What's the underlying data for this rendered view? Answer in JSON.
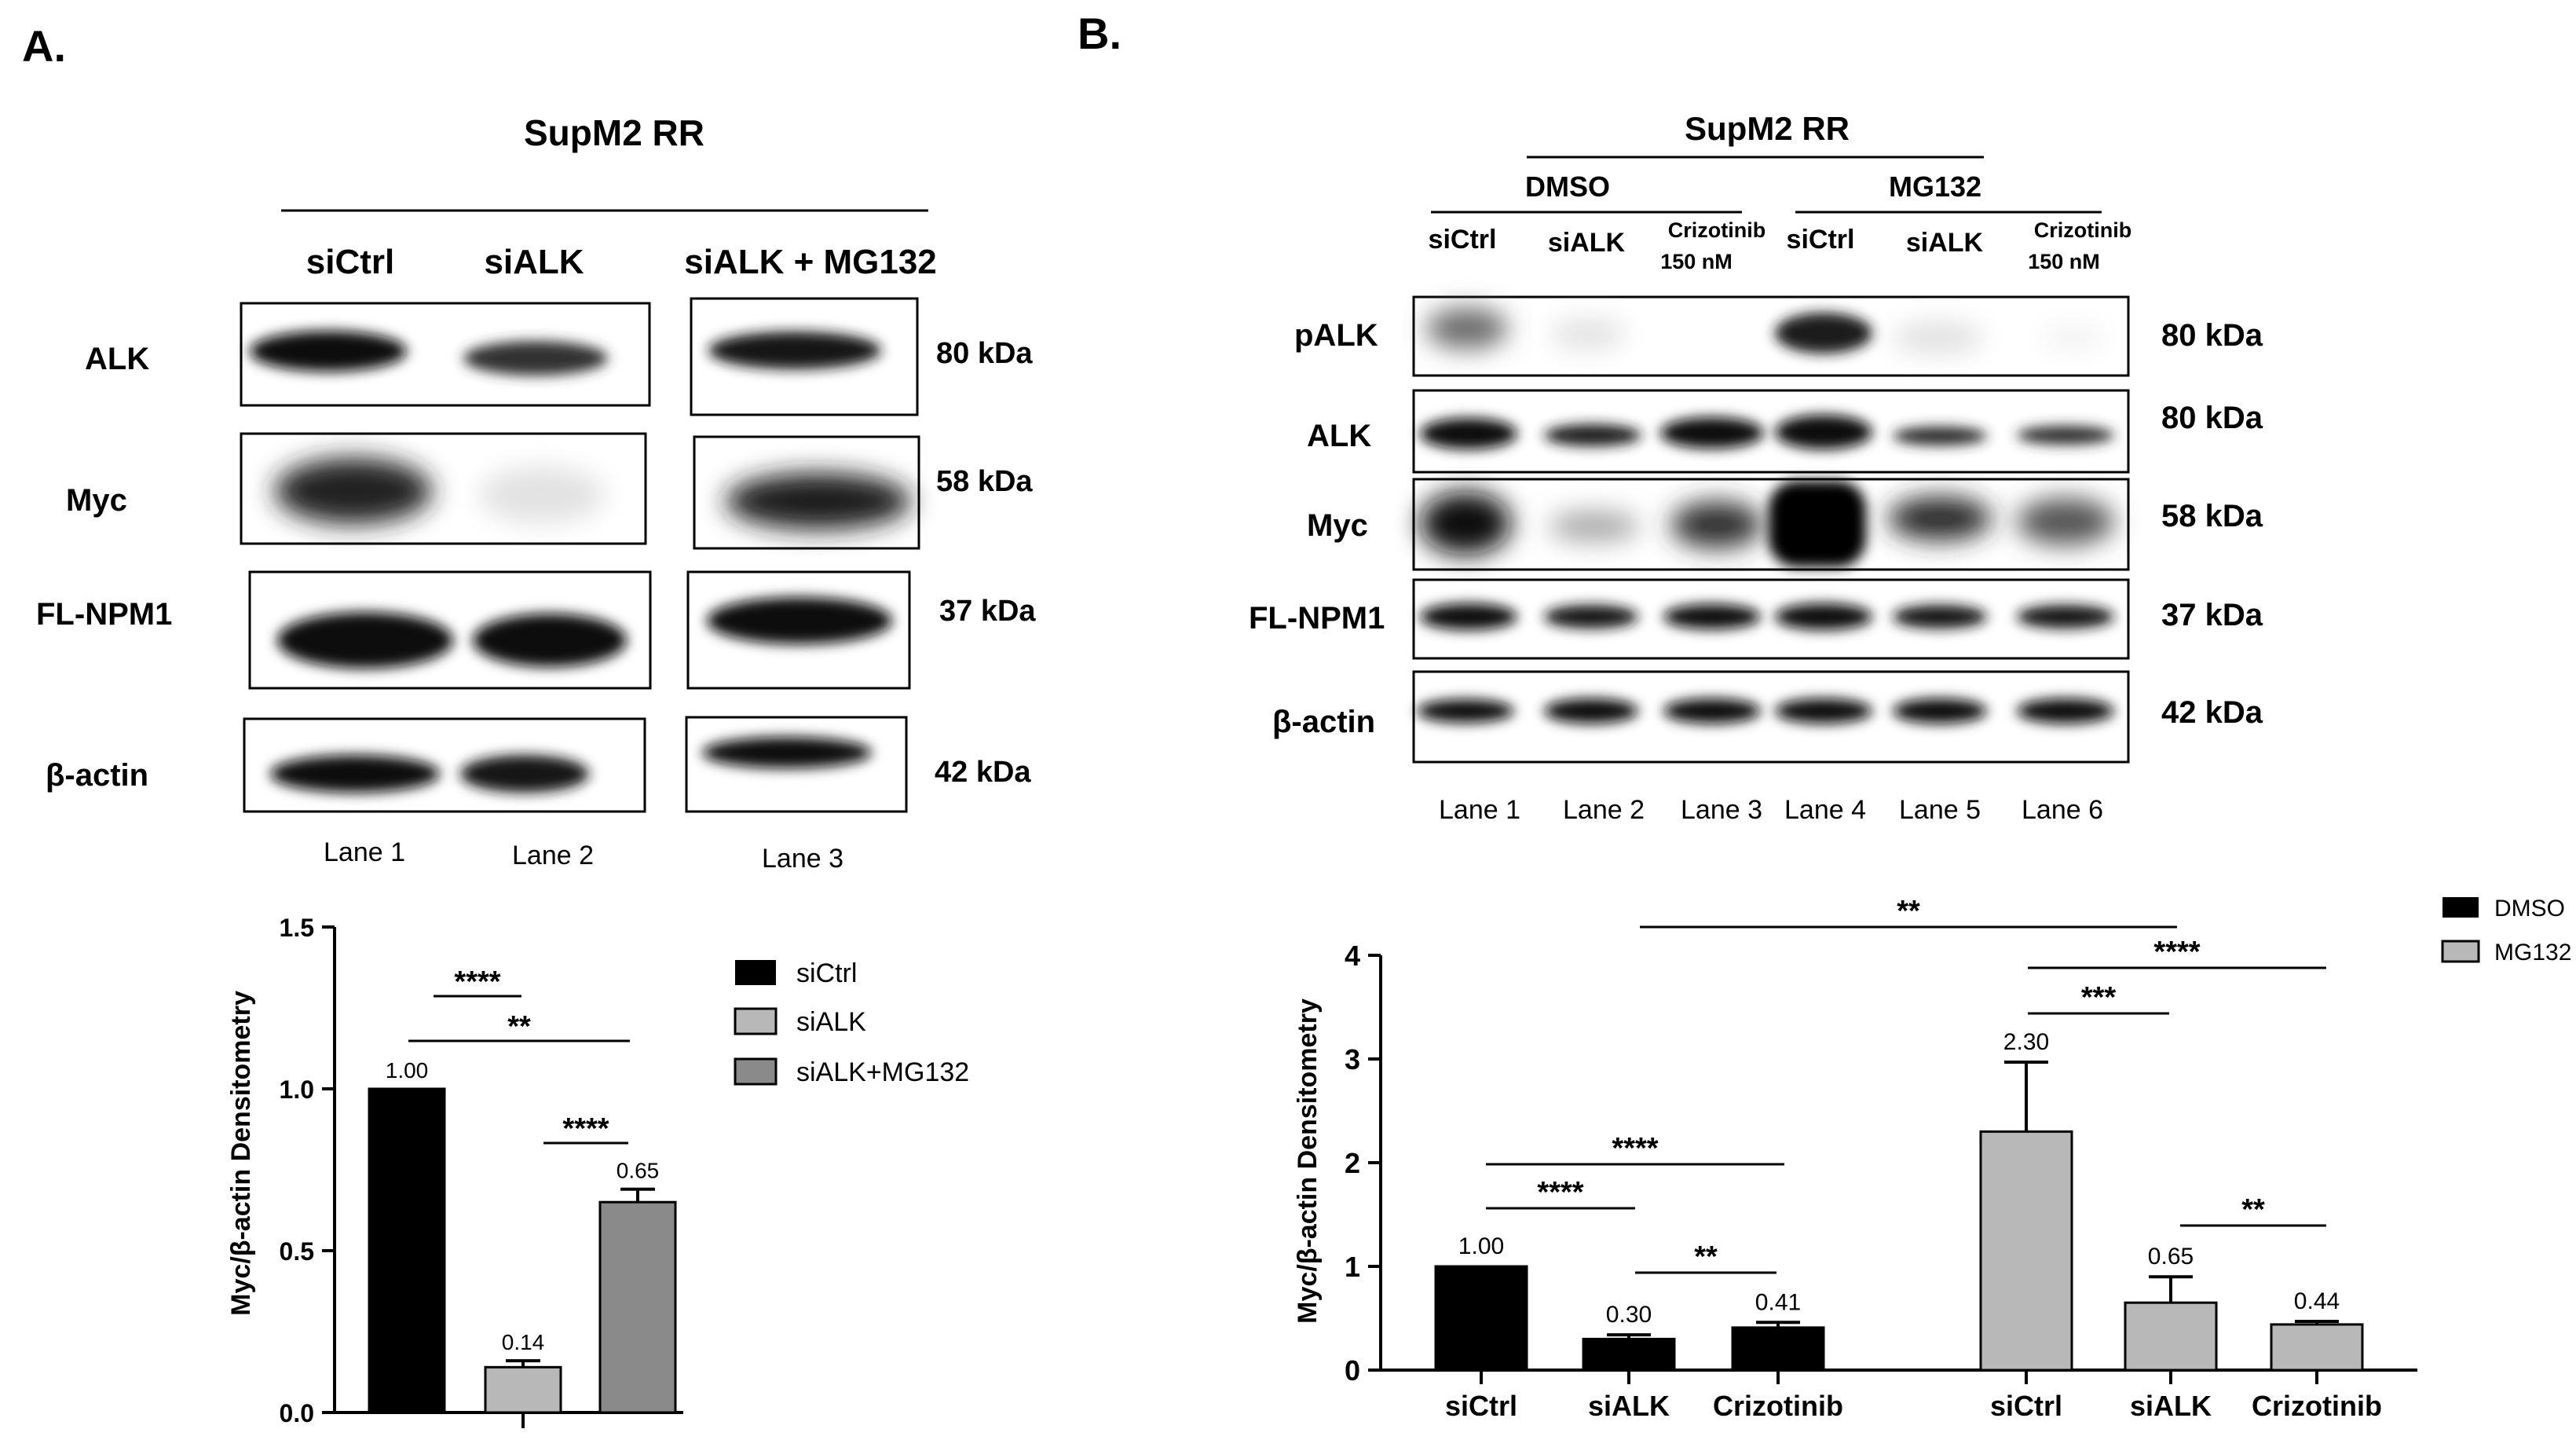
{
  "panels": {
    "a": {
      "label": "A.",
      "title": "SupM2 RR",
      "conditions": [
        "siCtrl",
        "siALK",
        "siALK + MG132"
      ],
      "blots": [
        {
          "protein": "ALK",
          "kda": "80 kDa"
        },
        {
          "protein": "Myc",
          "kda": "58 kDa"
        },
        {
          "protein": "FL-NPM1",
          "kda": "37 kDa"
        },
        {
          "protein": "β-actin",
          "kda": "42 kDa"
        }
      ],
      "lanes": [
        "Lane 1",
        "Lane 2",
        "Lane 3"
      ]
    },
    "b": {
      "label": "B.",
      "title": "SupM2 RR",
      "groups": [
        "DMSO",
        "MG132"
      ],
      "conditions": [
        "siCtrl",
        "siALK",
        "Crizotinib",
        "siCtrl",
        "siALK",
        "Crizotinib"
      ],
      "condition_dose": "150 nM",
      "blots": [
        {
          "protein": "pALK",
          "kda": "80 kDa"
        },
        {
          "protein": "ALK",
          "kda": "80 kDa"
        },
        {
          "protein": "Myc",
          "kda": "58 kDa"
        },
        {
          "protein": "FL-NPM1",
          "kda": "37 kDa"
        },
        {
          "protein": "β-actin",
          "kda": "42 kDa"
        }
      ],
      "lanes": [
        "Lane 1",
        "Lane 2",
        "Lane 3",
        "Lane 4",
        "Lane 5",
        "Lane 6"
      ]
    }
  },
  "chart_data": [
    {
      "type": "bar",
      "ylabel": "Myc/β-actin Densitometry",
      "ylim": [
        0,
        1.5
      ],
      "yticks": [
        "0.0",
        "0.5",
        "1.0",
        "1.5"
      ],
      "series": [
        {
          "name": "siCtrl",
          "value": 1.0,
          "error": 0.0,
          "label": "1.00",
          "color": "#000000"
        },
        {
          "name": "siALK",
          "value": 0.14,
          "error": 0.02,
          "label": "0.14",
          "color": "#b8b8b8"
        },
        {
          "name": "siALK+MG132",
          "value": 0.65,
          "error": 0.04,
          "label": "0.65",
          "color": "#8a8a8a"
        }
      ],
      "significance": [
        {
          "from": 0,
          "to": 1,
          "label": "****"
        },
        {
          "from": 0,
          "to": 2,
          "label": "**"
        },
        {
          "from": 1,
          "to": 2,
          "label": "****"
        }
      ],
      "legend_position": "right"
    },
    {
      "type": "bar",
      "ylabel": "Myc/β-actin Densitometry",
      "ylim": [
        0,
        4
      ],
      "yticks": [
        "0",
        "1",
        "2",
        "3",
        "4"
      ],
      "categories": [
        "siCtrl",
        "siALK",
        "Crizotinib",
        "siCtrl",
        "siALK",
        "Crizotinib"
      ],
      "series": [
        {
          "name": "DMSO",
          "color": "#000000"
        },
        {
          "name": "MG132",
          "color": "#b8b8b8"
        }
      ],
      "bars": [
        {
          "series": "DMSO",
          "value": 1.0,
          "error": 0.0,
          "label": "1.00"
        },
        {
          "series": "DMSO",
          "value": 0.3,
          "error": 0.04,
          "label": "0.30"
        },
        {
          "series": "DMSO",
          "value": 0.41,
          "error": 0.05,
          "label": "0.41"
        },
        {
          "series": "MG132",
          "value": 2.3,
          "error": 0.67,
          "label": "2.30"
        },
        {
          "series": "MG132",
          "value": 0.65,
          "error": 0.25,
          "label": "0.65"
        },
        {
          "series": "MG132",
          "value": 0.44,
          "error": 0.03,
          "label": "0.44"
        }
      ],
      "significance": [
        {
          "from": 1,
          "to": 4,
          "label": "**"
        },
        {
          "from": 3,
          "to": 5,
          "label": "****"
        },
        {
          "from": 3,
          "to": 4,
          "label": "***"
        },
        {
          "from": 0,
          "to": 2,
          "label": "****"
        },
        {
          "from": 0,
          "to": 1,
          "label": "****"
        },
        {
          "from": 1,
          "to": 2,
          "label": "**"
        },
        {
          "from": 4,
          "to": 5,
          "label": "**"
        }
      ],
      "legend_position": "top-right"
    }
  ]
}
